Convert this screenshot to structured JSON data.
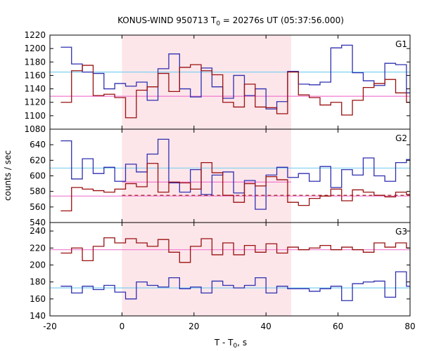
{
  "chart_data": {
    "type": "line",
    "title_main": "KONUS-WIND 950713 T",
    "title_sub": "0",
    "title_rest": " = 20276s UT (05:37:56.000)",
    "xlabel_main": "T - T",
    "xlabel_sub": "0",
    "xlabel_rest": ", s",
    "ylabel": "counts / sec",
    "xlim": [
      -20,
      80
    ],
    "x_ticks": [
      -20,
      0,
      20,
      40,
      60,
      80
    ],
    "shaded_interval": [
      0,
      47
    ],
    "colors": {
      "shade": "#fde6ea",
      "blue": "#2f2fb0",
      "red": "#9a1010",
      "cyan": "#7fd0f0",
      "pink": "#f07ad0"
    },
    "panels": [
      {
        "label": "G1",
        "ylim": [
          1080,
          1220
        ],
        "y_ticks": [
          1080,
          1100,
          1120,
          1140,
          1160,
          1180,
          1200,
          1220
        ],
        "ref_lines": [
          {
            "y": 1165,
            "color": "cyan",
            "dashed": false,
            "x_range": [
              -20,
              80
            ]
          },
          {
            "y": 1129,
            "color": "pink",
            "dashed": false,
            "x_range": [
              -20,
              80
            ]
          }
        ],
        "series": [
          {
            "color": "blue",
            "edges": [
              -17,
              -14,
              -11,
              -8,
              -5,
              -2,
              1,
              4,
              7,
              10,
              13,
              16,
              19,
              22,
              25,
              28,
              31,
              34,
              37,
              40,
              43,
              46,
              49,
              52,
              55,
              58,
              61,
              64,
              67,
              70,
              73,
              76,
              79
            ],
            "values": [
              1202,
              1177,
              1165,
              1163,
              1140,
              1148,
              1144,
              1150,
              1123,
              1170,
              1192,
              1140,
              1128,
              1171,
              1143,
              1126,
              1160,
              1130,
              1140,
              1110,
              1121,
              1166,
              1147,
              1146,
              1150,
              1201,
              1205,
              1164,
              1152,
              1145,
              1178,
              1176,
              1134
            ]
          },
          {
            "color": "red",
            "edges": [
              -17,
              -14,
              -11,
              -8,
              -5,
              -2,
              1,
              4,
              7,
              10,
              13,
              16,
              19,
              22,
              25,
              28,
              31,
              34,
              37,
              40,
              43,
              46,
              49,
              52,
              55,
              58,
              61,
              64,
              67,
              70,
              73,
              76,
              79
            ],
            "values": [
              1120,
              1167,
              1175,
              1130,
              1132,
              1127,
              1097,
              1138,
              1143,
              1163,
              1136,
              1172,
              1176,
              1167,
              1161,
              1120,
              1113,
              1147,
              1113,
              1112,
              1103,
              1165,
              1131,
              1127,
              1116,
              1120,
              1101,
              1123,
              1142,
              1148,
              1154,
              1134,
              1120
            ]
          }
        ]
      },
      {
        "label": "G2",
        "ylim": [
          540,
          660
        ],
        "y_ticks": [
          540,
          560,
          580,
          600,
          620,
          640
        ],
        "ref_lines": [
          {
            "y": 610,
            "color": "cyan",
            "dashed": false,
            "x_range": [
              -20,
              80
            ]
          },
          {
            "y": 574,
            "color": "pink",
            "dashed": false,
            "x_range": [
              -20,
              80
            ]
          },
          {
            "y": 592,
            "color": "pink",
            "dashed": false,
            "x_range": [
              0,
              47
            ]
          },
          {
            "y": 575,
            "color": "red",
            "dashed": true,
            "x_range": [
              0,
              80
            ]
          }
        ],
        "series": [
          {
            "color": "blue",
            "edges": [
              -17,
              -14,
              -11,
              -8,
              -5,
              -2,
              1,
              4,
              7,
              10,
              13,
              16,
              19,
              22,
              25,
              28,
              31,
              34,
              37,
              40,
              43,
              46,
              49,
              52,
              55,
              58,
              61,
              64,
              67,
              70,
              73,
              76,
              79
            ],
            "values": [
              645,
              596,
              622,
              603,
              611,
              593,
              615,
              605,
              628,
              647,
              591,
              579,
              608,
              576,
              601,
              605,
              578,
              594,
              557,
              601,
              611,
              598,
              603,
              593,
              612,
              585,
              608,
              601,
              623,
              600,
              593,
              617,
              621
            ]
          },
          {
            "color": "red",
            "edges": [
              -17,
              -14,
              -11,
              -8,
              -5,
              -2,
              1,
              4,
              7,
              10,
              13,
              16,
              19,
              22,
              25,
              28,
              31,
              34,
              37,
              40,
              43,
              46,
              49,
              52,
              55,
              58,
              61,
              64,
              67,
              70,
              73,
              76,
              79
            ],
            "values": [
              555,
              585,
              583,
              581,
              579,
              583,
              590,
              586,
              616,
              579,
              592,
              591,
              583,
              617,
              604,
              575,
              566,
              590,
              587,
              599,
              595,
              566,
              562,
              571,
              574,
              583,
              568,
              582,
              579,
              575,
              573,
              579,
              576
            ]
          }
        ]
      },
      {
        "label": "G3",
        "ylim": [
          140,
          250
        ],
        "y_ticks": [
          140,
          160,
          180,
          200,
          220,
          240
        ],
        "ref_lines": [
          {
            "y": 218,
            "color": "pink",
            "dashed": false,
            "x_range": [
              -20,
              80
            ]
          },
          {
            "y": 173,
            "color": "cyan",
            "dashed": false,
            "x_range": [
              -20,
              80
            ]
          }
        ],
        "series": [
          {
            "color": "red",
            "edges": [
              -17,
              -14,
              -11,
              -8,
              -5,
              -2,
              1,
              4,
              7,
              10,
              13,
              16,
              19,
              22,
              25,
              28,
              31,
              34,
              37,
              40,
              43,
              46,
              49,
              52,
              55,
              58,
              61,
              64,
              67,
              70,
              73,
              76,
              79
            ],
            "values": [
              214,
              220,
              205,
              222,
              232,
              226,
              231,
              226,
              222,
              230,
              215,
              203,
              222,
              231,
              212,
              226,
              212,
              223,
              215,
              225,
              214,
              221,
              218,
              220,
              223,
              218,
              221,
              218,
              215,
              226,
              221,
              226,
              220
            ]
          },
          {
            "color": "blue",
            "edges": [
              -17,
              -14,
              -11,
              -8,
              -5,
              -2,
              1,
              4,
              7,
              10,
              13,
              16,
              19,
              22,
              25,
              28,
              31,
              34,
              37,
              40,
              43,
              46,
              49,
              52,
              55,
              58,
              61,
              64,
              67,
              70,
              73,
              76,
              79
            ],
            "values": [
              175,
              167,
              175,
              171,
              176,
              168,
              160,
              180,
              176,
              174,
              185,
              172,
              174,
              167,
              181,
              176,
              173,
              176,
              185,
              167,
              175,
              172,
              172,
              169,
              172,
              175,
              158,
              178,
              180,
              181,
              162,
              192,
              175
            ]
          }
        ]
      }
    ]
  }
}
